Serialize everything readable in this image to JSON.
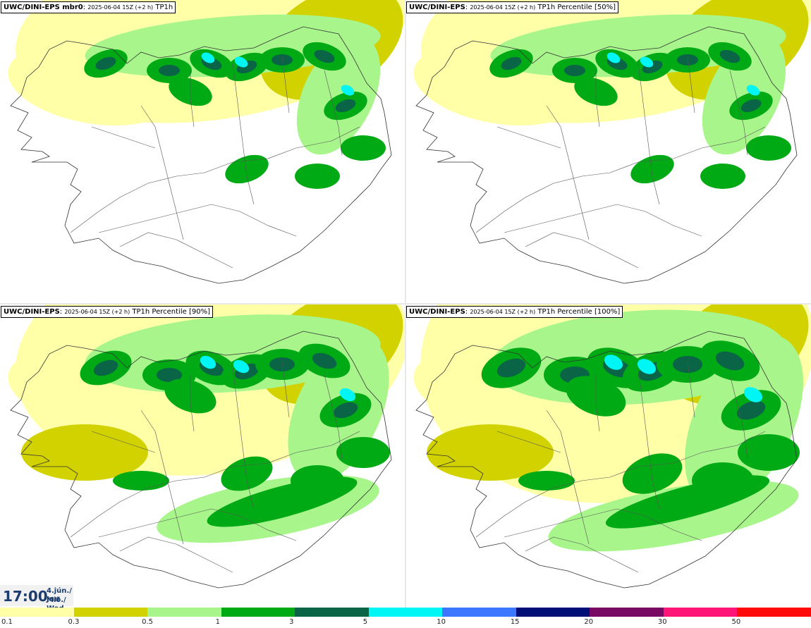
{
  "panels": [
    {
      "model": "UWC/DINI-EPS mbr0",
      "run": "2025-06-04 15Z (+2 h)",
      "field": "TP1h",
      "coverage": 1
    },
    {
      "model": "UWC/DINI-EPS",
      "run": "2025-06-04 15Z (+2 h)",
      "field": "TP1h Percentile [50%]",
      "coverage": 1
    },
    {
      "model": "UWC/DINI-EPS",
      "run": "2025-06-04 15Z (+2 h)",
      "field": "TP1h Percentile [90%]",
      "coverage": 2
    },
    {
      "model": "UWC/DINI-EPS",
      "run": "2025-06-04 15Z (+2 h)",
      "field": "TP1h Percentile [100%]",
      "coverage": 3
    }
  ],
  "time_box": {
    "time": "17:00",
    "date": "4.jún./ Jun",
    "weekday": "Mið./ Wed"
  },
  "legend": {
    "colors": [
      "#ffffa8",
      "#d2d200",
      "#a8f58c",
      "#00aa14",
      "#0a6446",
      "#00f5f5",
      "#3c78ff",
      "#000f78",
      "#780a64",
      "#ff1478",
      "#ff0a0a"
    ],
    "labels": [
      "0.1",
      "0.3",
      "0.5",
      "1",
      "3",
      "5",
      "10",
      "15",
      "20",
      "30",
      "50"
    ]
  }
}
